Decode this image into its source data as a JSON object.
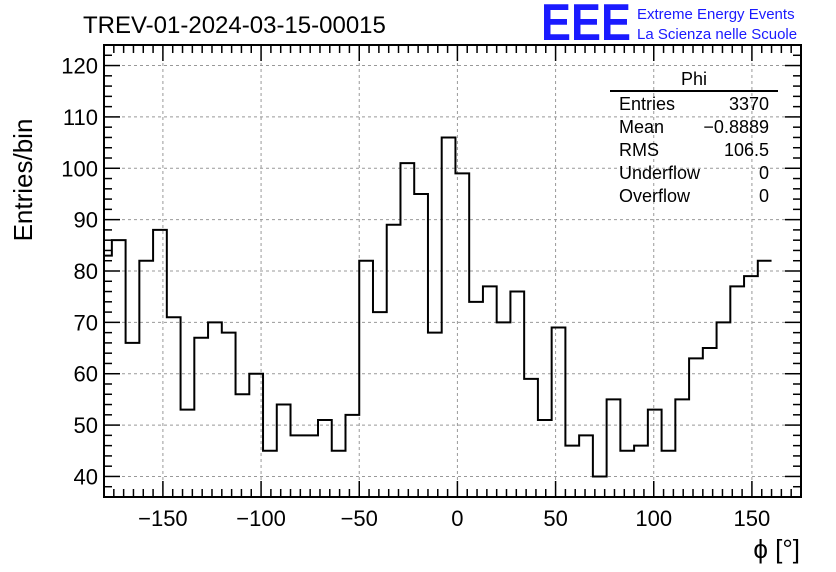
{
  "chart_data": {
    "type": "histogram",
    "title": "TREV-01-2024-03-15-00015",
    "xlabel": "ϕ [°]",
    "ylabel": "Entries/bin",
    "xlim": [
      -180,
      175
    ],
    "ylim": [
      36,
      124
    ],
    "bin_width": 7,
    "bin_start": -176,
    "x_ticks": [
      -150,
      -100,
      -50,
      0,
      50,
      100,
      150
    ],
    "x_tick_labels": [
      "−150",
      "−100",
      "−50",
      "0",
      "50",
      "100",
      "150"
    ],
    "y_ticks": [
      40,
      50,
      60,
      70,
      80,
      90,
      100,
      110,
      120
    ],
    "y_tick_labels": [
      "40",
      "50",
      "60",
      "70",
      "80",
      "90",
      "100",
      "110",
      "120"
    ],
    "grid": true,
    "left_edge_value": 83,
    "values": [
      86,
      66,
      82,
      88,
      71,
      53,
      67,
      70,
      68,
      56,
      60,
      45,
      54,
      48,
      48,
      51,
      45,
      52,
      82,
      72,
      89,
      101,
      95,
      68,
      106,
      99,
      74,
      77,
      70,
      76,
      59,
      51,
      69,
      46,
      48,
      40,
      55,
      45,
      46,
      53,
      45,
      55,
      63,
      65,
      70,
      77,
      79,
      82
    ],
    "stats_box": {
      "name": "Phi",
      "rows": [
        {
          "label": "Entries",
          "value": "3370"
        },
        {
          "label": "Mean",
          "value": "−0.8889"
        },
        {
          "label": "RMS",
          "value": "106.5"
        },
        {
          "label": "Underflow",
          "value": "0"
        },
        {
          "label": "Overflow",
          "value": "0"
        }
      ]
    }
  },
  "logo": {
    "mark": "EEE",
    "line1": "Extreme Energy Events",
    "line2": "La Scienza nelle Scuole",
    "color": "#1a1aff"
  }
}
